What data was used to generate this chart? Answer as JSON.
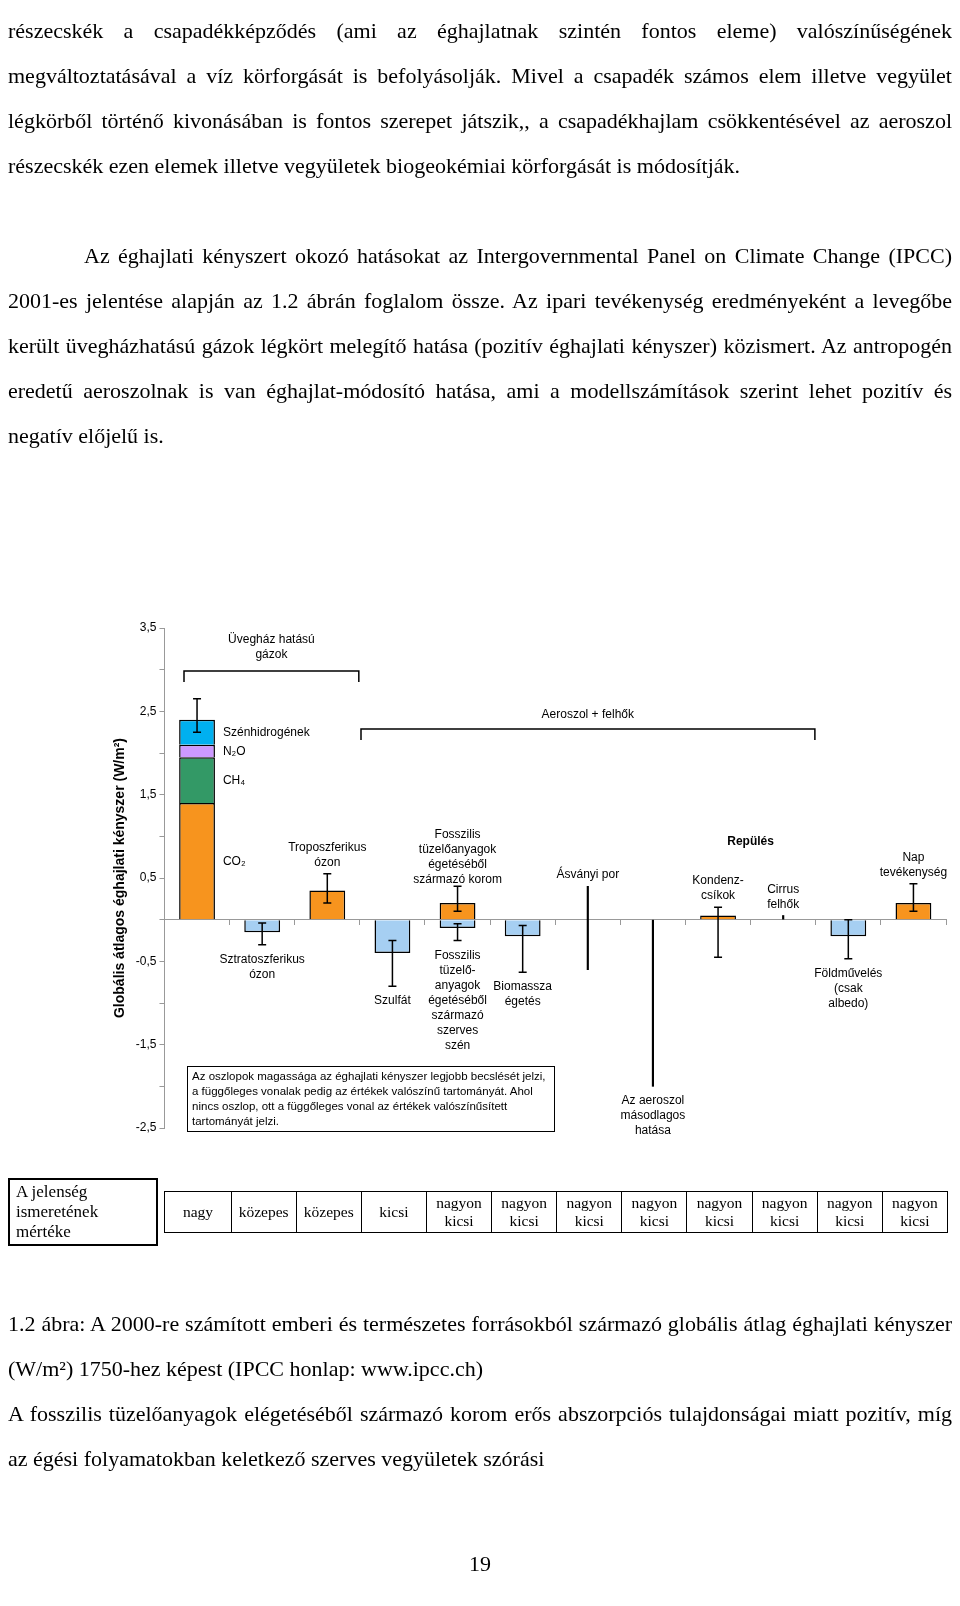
{
  "chart_data": {
    "type": "bar",
    "stacked": true,
    "ylabel": "Globális átlagos éghajlati kényszer (W/m²)",
    "categories": [
      null,
      "Sztratoszferikus ózon",
      "Troposzferikus ózon",
      "Szulfát",
      null,
      "Biomassza égetés",
      "Ásványi por",
      "Az aeroszol másodlagos hatása",
      "Kondenz-csíkok",
      "Cirrus felhők",
      "Földművelés (csak albedo)",
      "Nap tevékenység"
    ],
    "ylim": [
      -2.5,
      3.5
    ],
    "yticks": [
      {
        "value": -2.5,
        "label": "-2,5"
      },
      {
        "value": -2,
        "label": null
      },
      {
        "value": -1.5,
        "label": "-1,5"
      },
      {
        "value": -1,
        "label": null
      },
      {
        "value": -0.5,
        "label": "-0,5"
      },
      {
        "value": 0,
        "label": null
      },
      {
        "value": 0.5,
        "label": "0,5"
      },
      {
        "value": 1,
        "label": null
      },
      {
        "value": 1.5,
        "label": "1,5"
      },
      {
        "value": 2,
        "label": null
      },
      {
        "value": 2.5,
        "label": "2,5"
      },
      {
        "value": 3,
        "label": null
      },
      {
        "value": 3.5,
        "label": "3,5"
      }
    ],
    "series": [
      {
        "name": "CO₂",
        "color": "#f7941e",
        "values": [
          1.4,
          null,
          null,
          null,
          null,
          null,
          null,
          null,
          null,
          null,
          null,
          null
        ]
      },
      {
        "name": "CH₄",
        "color": "#339966",
        "values": [
          0.55,
          null,
          null,
          null,
          null,
          null,
          null,
          null,
          null,
          null,
          null,
          null
        ]
      },
      {
        "name": "N₂O",
        "color": "#cc99ff",
        "values": [
          0.15,
          null,
          null,
          null,
          null,
          null,
          null,
          null,
          null,
          null,
          null,
          null
        ]
      },
      {
        "name": "Szénhidrogének",
        "color": "#00b0f0",
        "values": [
          0.3,
          null,
          null,
          null,
          null,
          null,
          null,
          null,
          null,
          null,
          null,
          null
        ],
        "errors": [
          [
            2.25,
            2.65
          ],
          null,
          null,
          null,
          null,
          null,
          null,
          null,
          null,
          null,
          null,
          null
        ]
      },
      {
        "name": "Fosszilis tüzelőanyagok égetéséből származó korom",
        "color": "#f7941e",
        "values": [
          null,
          null,
          null,
          null,
          0.2,
          null,
          null,
          null,
          null,
          null,
          null,
          null
        ],
        "errors": [
          null,
          null,
          null,
          null,
          [
            0.1,
            0.4
          ],
          null,
          null,
          null,
          null,
          null,
          null,
          null
        ]
      },
      {
        "name": "Fosszilis tüzelő-anyagok égetéséből származó szerves szén",
        "color": "#a6cff2",
        "values": [
          null,
          null,
          null,
          null,
          -0.1,
          null,
          null,
          null,
          null,
          null,
          null,
          null
        ],
        "errors": [
          null,
          null,
          null,
          null,
          [
            -0.25,
            -0.05
          ],
          null,
          null,
          null,
          null,
          null,
          null,
          null
        ]
      },
      {
        "colors": [
          "#000000",
          "#a6cff2",
          "#f7941e",
          "#a6cff2",
          "#000000",
          "#a6cff2",
          "#000000",
          "#000000",
          "#f7941e",
          "#000000",
          "#a6cff2",
          "#f7941e"
        ],
        "values": [
          null,
          -0.15,
          0.35,
          -0.4,
          null,
          -0.2,
          null,
          null,
          0.05,
          null,
          -0.2,
          0.2
        ],
        "errors": [
          null,
          [
            -0.3,
            -0.04
          ],
          [
            0.2,
            0.55
          ],
          [
            -0.8,
            -0.25
          ],
          null,
          [
            -0.63,
            -0.07
          ],
          null,
          null,
          [
            -0.45,
            0.15
          ],
          null,
          [
            -0.47,
            0
          ],
          [
            0.1,
            0.43
          ]
        ]
      },
      {
        "type": "bar",
        "color": "#000000",
        "base": [
          null,
          null,
          null,
          null,
          null,
          null,
          -0.6,
          -2.0,
          null,
          0,
          null,
          null
        ],
        "values": [
          null,
          null,
          null,
          null,
          null,
          null,
          1.0,
          2.0,
          null,
          0.05,
          null,
          null
        ]
      }
    ],
    "annotations": [
      "részecskék a csapadékképződés (ami az éghajlatnak szintén fontos eleme) valószínűségének megváltoztatásával a víz körforgását is befolyásolják. Mivel a csapadék számos elem illetve vegyület légkörből történő kivonásában is fontos szerepet játszik,, a csapadékhajlam csökkentésével az aeroszol részecskék ezen elemek illetve vegyületek biogeokémiai körforgását is módosítják.",
      "Az éghajlati kényszert okozó hatásokat az Intergovernmental Panel on Climate Change (IPCC) 2001-es jelentése alapján az 1.2 ábrán foglalom össze. Az ipari tevékenység eredményeként a levegőbe került üvegházhatású gázok légkört melegítő hatása (pozitív éghajlati kényszer) közismert. Az antropogén eredetű aeroszolnak is van éghajlat-módosító hatása, ami a modellszámítások szerint lehet pozitív és negatív előjelű is.",
      "Üvegház hatású gázok",
      "Aeroszol + felhők",
      "Repülés",
      "Az oszlopok magassága az éghajlati kényszer legjobb becslését jelzi, a függőleges vonalak pedig az értékek valószínű tartományát. Ahol nincs oszlop, ott a függőleges vonal az értékek valószínűsített tartományát jelzi.",
      "A jelenség ismeretének mértéke",
      "nagy",
      "közepes",
      "közepes",
      "kicsi",
      "nagyon kicsi",
      "nagyon kicsi",
      "nagyon kicsi",
      "nagyon kicsi",
      "nagyon kicsi",
      "nagyon kicsi",
      "nagyon kicsi",
      "nagyon kicsi",
      "1.2 ábra: A 2000-re számított emberi és természetes forrásokból származó globális átlag éghajlati kényszer (W/m²) 1750-hez képest (IPCC honlap: www.ipcc.ch)",
      "A fosszilis tüzelőanyagok elégetéséből származó korom erős abszorpciós tulajdonságai miatt pozitív, míg az égési folyamatokban keletkező szerves vegyületek szórási",
      "19"
    ]
  }
}
